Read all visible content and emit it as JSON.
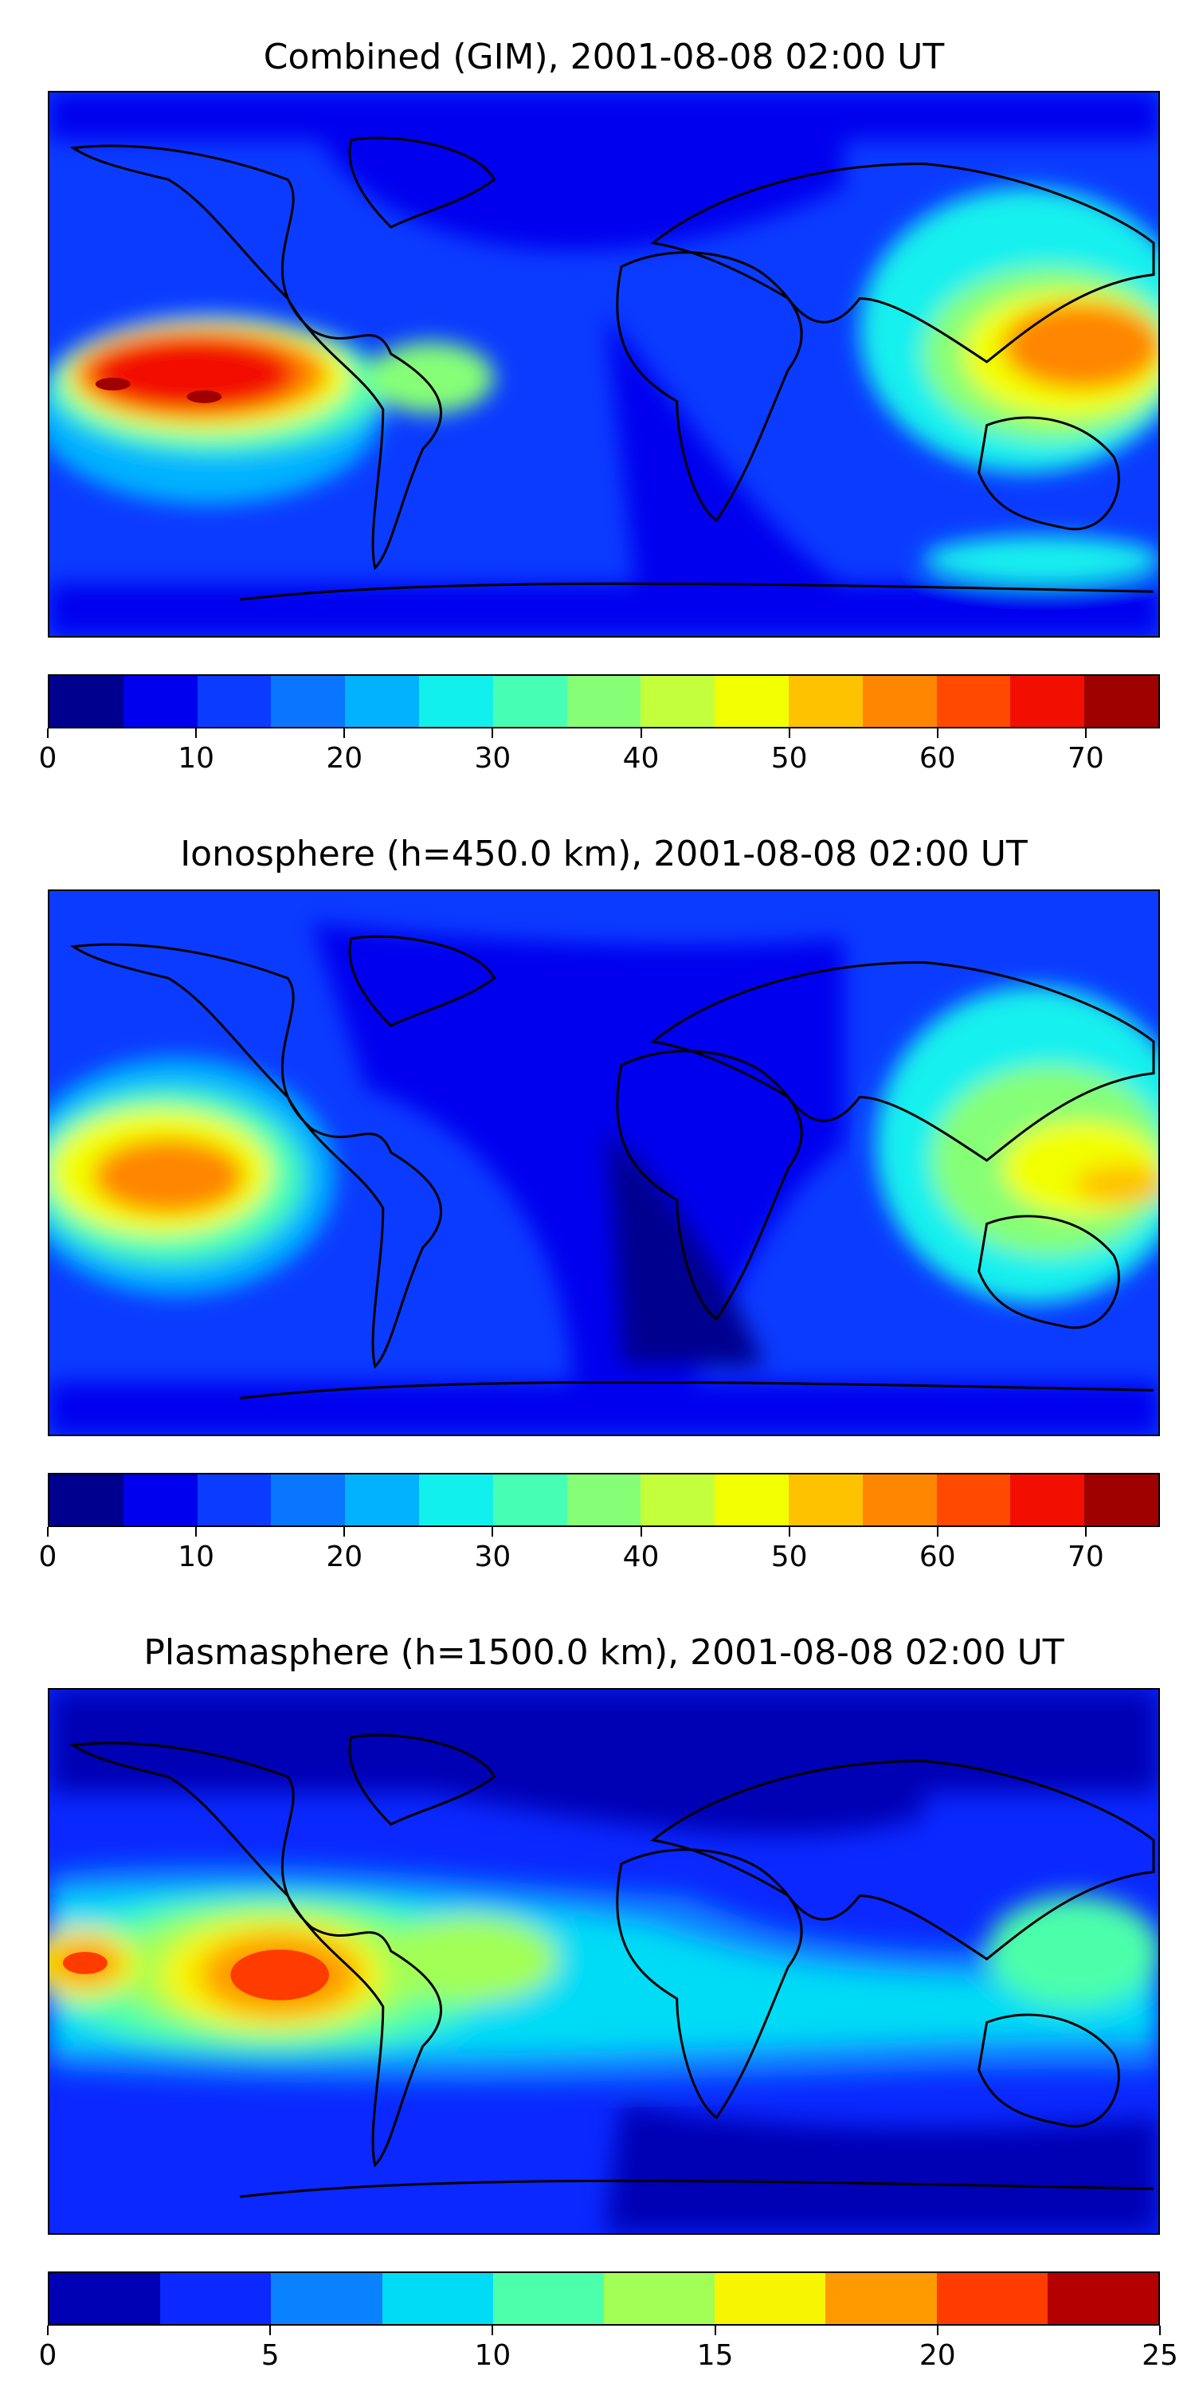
{
  "panels": [
    {
      "title": "Combined (GIM), 2001-08-08 02:00 UT",
      "colorbar": {
        "colors": [
          "#00008f",
          "#0000ee",
          "#0b3bff",
          "#0a76ff",
          "#03b2ff",
          "#12f0ee",
          "#46ffb4",
          "#86ff77",
          "#c4ff3b",
          "#f2ff00",
          "#ffc200",
          "#ff8600",
          "#ff4a00",
          "#f20e00",
          "#9f0000"
        ],
        "ticks": [
          "0",
          "10",
          "20",
          "30",
          "40",
          "50",
          "60",
          "70"
        ],
        "tick_values": [
          0,
          10,
          20,
          30,
          40,
          50,
          60,
          70
        ],
        "range": [
          0,
          75
        ]
      }
    },
    {
      "title": "Ionosphere  (h=450.0 km), 2001-08-08 02:00 UT",
      "colorbar": {
        "colors": [
          "#00008f",
          "#0000ee",
          "#0b3bff",
          "#0a76ff",
          "#03b2ff",
          "#12f0ee",
          "#46ffb4",
          "#86ff77",
          "#c4ff3b",
          "#f2ff00",
          "#ffc200",
          "#ff8600",
          "#ff4a00",
          "#f20e00",
          "#9f0000"
        ],
        "ticks": [
          "0",
          "10",
          "20",
          "30",
          "40",
          "50",
          "60",
          "70"
        ],
        "tick_values": [
          0,
          10,
          20,
          30,
          40,
          50,
          60,
          70
        ],
        "range": [
          0,
          75
        ]
      }
    },
    {
      "title": "Plasmasphere (h=1500.0 km), 2001-08-08 02:00 UT",
      "colorbar": {
        "colors": [
          "#0000b4",
          "#0a28ff",
          "#0a82ff",
          "#00dcf5",
          "#4cffaa",
          "#a2ff55",
          "#f7f500",
          "#ff9a00",
          "#ff3c00",
          "#b40000"
        ],
        "ticks": [
          "0",
          "5",
          "10",
          "15",
          "20",
          "25"
        ],
        "tick_values": [
          0,
          5,
          10,
          15,
          20,
          25
        ],
        "range": [
          0,
          25
        ]
      }
    }
  ]
}
